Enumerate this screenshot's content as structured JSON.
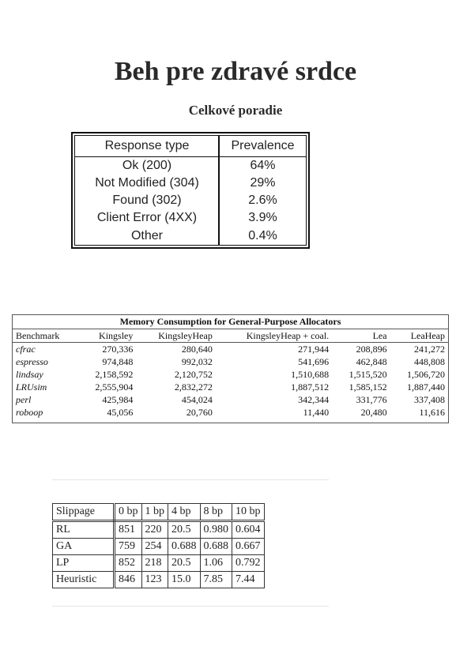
{
  "page": {
    "title": "Beh pre zdravé srdce",
    "subtitle": "Celkové poradie"
  },
  "table1": {
    "headers": [
      "Response type",
      "Prevalence"
    ],
    "rows": [
      [
        "Ok (200)",
        "64%"
      ],
      [
        "Not Modified (304)",
        "29%"
      ],
      [
        "Found (302)",
        "2.6%"
      ],
      [
        "Client Error (4XX)",
        "3.9%"
      ],
      [
        "Other",
        "0.4%"
      ]
    ]
  },
  "table2": {
    "title": "Memory Consumption for General-Purpose Allocators",
    "headers": [
      "Benchmark",
      "Kingsley",
      "KingsleyHeap",
      "KingsleyHeap + coal.",
      "Lea",
      "LeaHeap"
    ],
    "rows": [
      [
        "cfrac",
        "270,336",
        "280,640",
        "271,944",
        "208,896",
        "241,272"
      ],
      [
        "espresso",
        "974,848",
        "992,032",
        "541,696",
        "462,848",
        "448,808"
      ],
      [
        "lindsay",
        "2,158,592",
        "2,120,752",
        "1,510,688",
        "1,515,520",
        "1,506,720"
      ],
      [
        "LRUsim",
        "2,555,904",
        "2,832,272",
        "1,887,512",
        "1,585,152",
        "1,887,440"
      ],
      [
        "perl",
        "425,984",
        "454,024",
        "342,344",
        "331,776",
        "337,408"
      ],
      [
        "roboop",
        "45,056",
        "20,760",
        "11,440",
        "20,480",
        "11,616"
      ]
    ]
  },
  "table3": {
    "headers": [
      "Slippage",
      "0 bp",
      "1 bp",
      "4 bp",
      "8 bp",
      "10 bp"
    ],
    "rows": [
      [
        "RL",
        "851",
        "220",
        "20.5",
        "0.980",
        "0.604"
      ],
      [
        "GA",
        "759",
        "254",
        "0.688",
        "0.688",
        "0.667"
      ],
      [
        "LP",
        "852",
        "218",
        "20.5",
        "1.06",
        "0.792"
      ],
      [
        "Heuristic",
        "846",
        "123",
        "15.0",
        "7.85",
        "7.44"
      ]
    ]
  }
}
